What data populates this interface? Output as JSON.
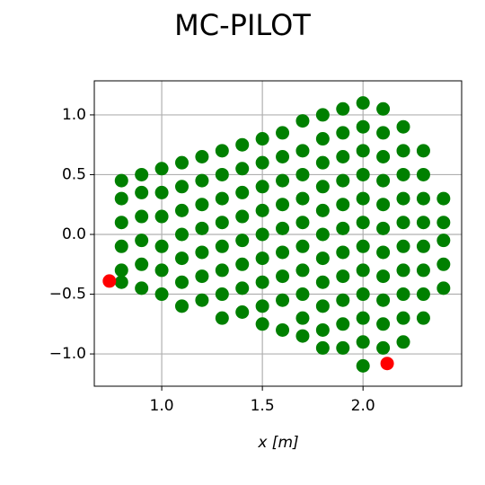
{
  "chart_data": {
    "type": "scatter",
    "title": "MC-PILOT",
    "x_label": "x [m]",
    "xlim": [
      0.665,
      2.49
    ],
    "ylim": [
      -1.27,
      1.285
    ],
    "xticks": [
      {
        "value": 1.0,
        "label": "1.0"
      },
      {
        "value": 1.5,
        "label": "1.5"
      },
      {
        "value": 2.0,
        "label": "2.0"
      }
    ],
    "yticks": [
      {
        "value": -1.0,
        "label": "−1.0"
      },
      {
        "value": -0.5,
        "label": "−0.5"
      },
      {
        "value": 0.0,
        "label": "0.0"
      },
      {
        "value": 0.5,
        "label": "0.5"
      },
      {
        "value": 1.0,
        "label": "1.0"
      }
    ],
    "grid": true,
    "series": [
      {
        "color": "#008000",
        "x": [
          0.8,
          0.8,
          0.8,
          0.8,
          0.8,
          0.8,
          0.9,
          0.9,
          0.9,
          0.9,
          0.9,
          0.9,
          1.0,
          1.0,
          1.0,
          1.0,
          1.0,
          1.0,
          1.1,
          1.1,
          1.1,
          1.1,
          1.1,
          1.1,
          1.1,
          1.2,
          1.2,
          1.2,
          1.2,
          1.2,
          1.2,
          1.2,
          1.3,
          1.3,
          1.3,
          1.3,
          1.3,
          1.3,
          1.3,
          1.3,
          1.4,
          1.4,
          1.4,
          1.4,
          1.4,
          1.4,
          1.4,
          1.4,
          1.5,
          1.5,
          1.5,
          1.5,
          1.5,
          1.5,
          1.5,
          1.5,
          1.5,
          1.6,
          1.6,
          1.6,
          1.6,
          1.6,
          1.6,
          1.6,
          1.6,
          1.6,
          1.7,
          1.7,
          1.7,
          1.7,
          1.7,
          1.7,
          1.7,
          1.7,
          1.7,
          1.7,
          1.8,
          1.8,
          1.8,
          1.8,
          1.8,
          1.8,
          1.8,
          1.8,
          1.8,
          1.8,
          1.8,
          1.9,
          1.9,
          1.9,
          1.9,
          1.9,
          1.9,
          1.9,
          1.9,
          1.9,
          1.9,
          1.9,
          2.0,
          2.0,
          2.0,
          2.0,
          2.0,
          2.0,
          2.0,
          2.0,
          2.0,
          2.0,
          2.0,
          2.0,
          2.1,
          2.1,
          2.1,
          2.1,
          2.1,
          2.1,
          2.1,
          2.1,
          2.1,
          2.1,
          2.1,
          2.2,
          2.2,
          2.2,
          2.2,
          2.2,
          2.2,
          2.2,
          2.2,
          2.2,
          2.2,
          2.3,
          2.3,
          2.3,
          2.3,
          2.3,
          2.3,
          2.3,
          2.3,
          2.4,
          2.4,
          2.4,
          2.4,
          2.4
        ],
        "values": [
          0.45,
          0.3,
          0.1,
          -0.1,
          -0.3,
          -0.4,
          0.5,
          0.35,
          0.15,
          -0.05,
          -0.25,
          -0.45,
          0.55,
          0.35,
          0.15,
          -0.1,
          -0.3,
          -0.5,
          0.6,
          0.4,
          0.2,
          0.0,
          -0.2,
          -0.4,
          -0.6,
          0.65,
          0.45,
          0.25,
          0.05,
          -0.15,
          -0.35,
          -0.55,
          0.7,
          0.5,
          0.3,
          0.1,
          -0.1,
          -0.3,
          -0.5,
          -0.7,
          0.75,
          0.55,
          0.35,
          0.15,
          -0.05,
          -0.25,
          -0.45,
          -0.65,
          0.8,
          0.6,
          0.4,
          0.2,
          0.0,
          -0.2,
          -0.4,
          -0.6,
          -0.75,
          0.85,
          0.65,
          0.45,
          0.25,
          0.05,
          -0.15,
          -0.35,
          -0.55,
          -0.8,
          0.95,
          0.7,
          0.5,
          0.3,
          0.1,
          -0.1,
          -0.3,
          -0.5,
          -0.7,
          -0.85,
          1.0,
          0.8,
          0.6,
          0.4,
          0.2,
          0.0,
          -0.2,
          -0.4,
          -0.6,
          -0.8,
          -0.95,
          1.05,
          0.85,
          0.65,
          0.45,
          0.25,
          0.05,
          -0.15,
          -0.35,
          -0.55,
          -0.75,
          -0.95,
          1.1,
          0.9,
          0.7,
          0.5,
          0.3,
          0.1,
          -0.1,
          -0.3,
          -0.5,
          -0.7,
          -0.9,
          -1.1,
          1.05,
          0.85,
          0.65,
          0.45,
          0.25,
          0.05,
          -0.15,
          -0.35,
          -0.55,
          -0.75,
          -0.95,
          0.9,
          0.7,
          0.5,
          0.3,
          0.1,
          -0.1,
          -0.3,
          -0.5,
          -0.7,
          -0.9,
          0.7,
          0.5,
          0.3,
          0.1,
          -0.1,
          -0.3,
          -0.5,
          -0.7,
          0.3,
          0.1,
          -0.05,
          -0.25,
          -0.45
        ]
      },
      {
        "color": "#ff0000",
        "x": [
          0.74,
          2.12
        ],
        "values": [
          -0.39,
          -1.08
        ]
      }
    ]
  }
}
